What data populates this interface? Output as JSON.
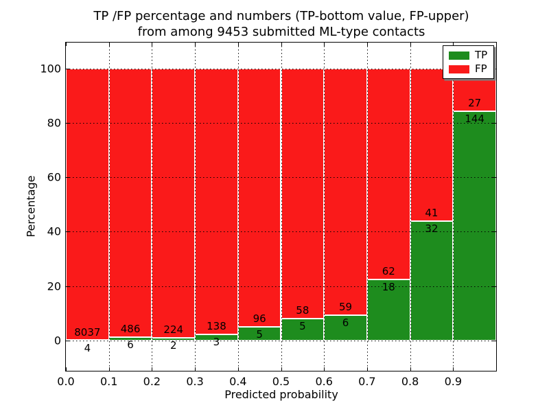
{
  "title": {
    "line1": "TP /FP percentage and numbers (TP-bottom value, FP-upper)",
    "line2": "from among 9453 submitted ML-type contacts"
  },
  "x_axis": {
    "label": "Predicted probability",
    "tick_labels": [
      "0.0",
      "0.1",
      "0.2",
      "0.3",
      "0.4",
      "0.5",
      "0.6",
      "0.7",
      "0.8",
      "0.9"
    ]
  },
  "y_axis": {
    "label": "Percentage",
    "tick_labels": [
      "0",
      "20",
      "40",
      "60",
      "80",
      "100"
    ],
    "tick_values": [
      0,
      20,
      40,
      60,
      80,
      100
    ]
  },
  "legend": {
    "items": [
      {
        "label": "TP",
        "color": "#1e8c1e"
      },
      {
        "label": "FP",
        "color": "#fa1a1a"
      }
    ]
  },
  "colors": {
    "tp": "#1e8c1e",
    "fp": "#fa1a1a",
    "grid": "#000000",
    "background": "#ffffff"
  },
  "chart_data": {
    "type": "bar",
    "stacked": true,
    "normalized_to_percent": true,
    "title": "TP /FP percentage and numbers (TP-bottom value, FP-upper) from among 9453 submitted ML-type contacts",
    "xlabel": "Predicted probability",
    "ylabel": "Percentage",
    "xlim": [
      0.0,
      1.0
    ],
    "ylim": [
      -11,
      110
    ],
    "grid": true,
    "legend_position": "upper right",
    "bin_edges": [
      0.0,
      0.1,
      0.2,
      0.3,
      0.4,
      0.5,
      0.6,
      0.7,
      0.8,
      0.9,
      1.0
    ],
    "bins": [
      "0.0-0.1",
      "0.1-0.2",
      "0.2-0.3",
      "0.3-0.4",
      "0.4-0.5",
      "0.5-0.6",
      "0.6-0.7",
      "0.7-0.8",
      "0.8-0.9",
      "0.9-1.0"
    ],
    "series": [
      {
        "name": "TP",
        "color": "#1e8c1e",
        "counts": [
          4,
          6,
          2,
          3,
          5,
          5,
          6,
          18,
          32,
          144
        ],
        "percent": [
          0.05,
          1.22,
          0.88,
          2.13,
          4.95,
          7.94,
          9.23,
          22.5,
          43.84,
          84.21
        ]
      },
      {
        "name": "FP",
        "color": "#fa1a1a",
        "counts": [
          8037,
          486,
          224,
          138,
          96,
          58,
          59,
          62,
          41,
          27
        ],
        "percent": [
          99.95,
          98.78,
          99.12,
          97.87,
          95.05,
          92.06,
          90.77,
          77.5,
          56.16,
          15.79
        ]
      }
    ],
    "total_contacts": 9453
  }
}
